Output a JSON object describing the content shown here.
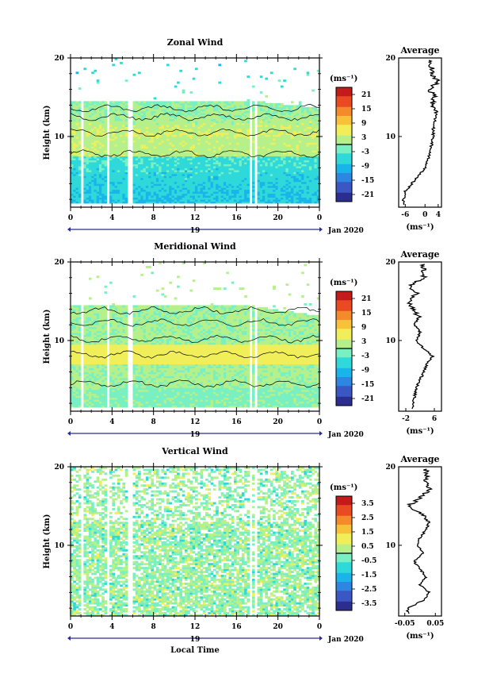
{
  "figure": {
    "xlabel": "Local Time",
    "date_label": "Jan 2020",
    "day_label": "19"
  },
  "chart_data": [
    {
      "type": "heatmap",
      "title": "Zonal Wind",
      "ylabel": "Height (km)",
      "xlabel": "Local Time",
      "x_ticks": [
        "0",
        "4",
        "8",
        "12",
        "16",
        "20",
        "0"
      ],
      "y_ticks": [
        "10",
        "20"
      ],
      "xlim": [
        0,
        24
      ],
      "ylim": [
        1,
        20
      ],
      "colorbar_unit": "(ms⁻¹)",
      "colorbar_ticks": [
        "21",
        "15",
        "9",
        "3",
        "-3",
        "-9",
        "-15",
        "-21"
      ],
      "colorbar_range": [
        -24,
        24
      ],
      "data_gaps_hours": [
        [
          1.0,
          1.3
        ],
        [
          3.4,
          3.7
        ],
        [
          5.6,
          6.0
        ],
        [
          17.2,
          17.5
        ],
        [
          17.8,
          18.0
        ]
      ],
      "profile_height_km": [
        2,
        3,
        4,
        5,
        6,
        7,
        8,
        9,
        10,
        11,
        12,
        13,
        14,
        15,
        16,
        17,
        18
      ],
      "average": {
        "title": "Average",
        "xlabel": "(ms⁻¹)",
        "x_ticks": [
          "-6",
          "0",
          "4"
        ],
        "xlim": [
          -8,
          5
        ],
        "y_ticks": [
          "10",
          "20"
        ],
        "values": [
          -6.5,
          -6,
          -4,
          -2,
          0,
          1,
          1.5,
          2,
          2.5,
          2.5,
          3,
          3.5,
          2,
          3,
          1.5,
          4,
          2
        ]
      }
    },
    {
      "type": "heatmap",
      "title": "Meridional Wind",
      "ylabel": "Height (km)",
      "xlabel": "Local Time",
      "x_ticks": [
        "0",
        "4",
        "8",
        "12",
        "16",
        "20",
        "0"
      ],
      "y_ticks": [
        "10",
        "20"
      ],
      "xlim": [
        0,
        24
      ],
      "ylim": [
        1,
        20
      ],
      "colorbar_unit": "(ms⁻¹)",
      "colorbar_ticks": [
        "21",
        "15",
        "9",
        "3",
        "-3",
        "-9",
        "-15",
        "-21"
      ],
      "colorbar_range": [
        -24,
        24
      ],
      "data_gaps_hours": [
        [
          1.0,
          1.3
        ],
        [
          3.4,
          3.7
        ],
        [
          5.6,
          6.0
        ],
        [
          17.2,
          17.5
        ],
        [
          17.8,
          18.0
        ]
      ],
      "profile_height_km": [
        2,
        3,
        4,
        5,
        6,
        7,
        8,
        9,
        10,
        11,
        12,
        13,
        14,
        15,
        16,
        17,
        18
      ],
      "average": {
        "title": "Average",
        "xlabel": "(ms⁻¹)",
        "x_ticks": [
          "-2",
          "6"
        ],
        "xlim": [
          -4,
          8
        ],
        "y_ticks": [
          "10",
          "20"
        ],
        "values": [
          0,
          0.5,
          1,
          2,
          3,
          4,
          5.5,
          3,
          1,
          2,
          0.5,
          1.5,
          0,
          -1,
          1,
          -1,
          3
        ]
      }
    },
    {
      "type": "heatmap",
      "title": "Vertical Wind",
      "ylabel": "Height (km)",
      "xlabel": "Local Time",
      "x_ticks": [
        "0",
        "4",
        "8",
        "12",
        "16",
        "20",
        "0"
      ],
      "y_ticks": [
        "10",
        "20"
      ],
      "xlim": [
        0,
        24
      ],
      "ylim": [
        1,
        20
      ],
      "colorbar_unit": "(ms⁻¹)",
      "colorbar_ticks": [
        "3.5",
        "2.5",
        "1.5",
        "0.5",
        "-0.5",
        "-1.5",
        "-2.5",
        "-3.5"
      ],
      "colorbar_range": [
        -4,
        4
      ],
      "data_gaps_hours": [
        [
          1.0,
          1.3
        ],
        [
          3.4,
          3.7
        ],
        [
          5.6,
          6.0
        ],
        [
          17.2,
          17.5
        ],
        [
          17.8,
          18.0
        ]
      ],
      "profile_height_km": [
        2,
        3,
        4,
        5,
        6,
        7,
        8,
        9,
        10,
        11,
        12,
        13,
        14,
        15,
        16,
        17,
        18
      ],
      "average": {
        "title": "Average",
        "xlabel": "(ms⁻¹)",
        "x_ticks": [
          "-0.05",
          "0.05"
        ],
        "xlim": [
          -0.07,
          0.07
        ],
        "y_ticks": [
          "10",
          "20"
        ],
        "values": [
          -0.04,
          0.01,
          0.03,
          0.0,
          0.02,
          0.0,
          -0.02,
          0.01,
          -0.01,
          0.0,
          0.02,
          0.03,
          0.01,
          -0.04,
          0.0,
          0.03,
          0.02
        ]
      }
    }
  ],
  "colors": {
    "colormap": [
      "#2b2e8f",
      "#3a57c4",
      "#2e86e0",
      "#19b4ea",
      "#2fd9d9",
      "#79f0c2",
      "#b6f08a",
      "#f0ef5a",
      "#f7c23a",
      "#f48a2a",
      "#ea4a22",
      "#c41a1a"
    ]
  }
}
